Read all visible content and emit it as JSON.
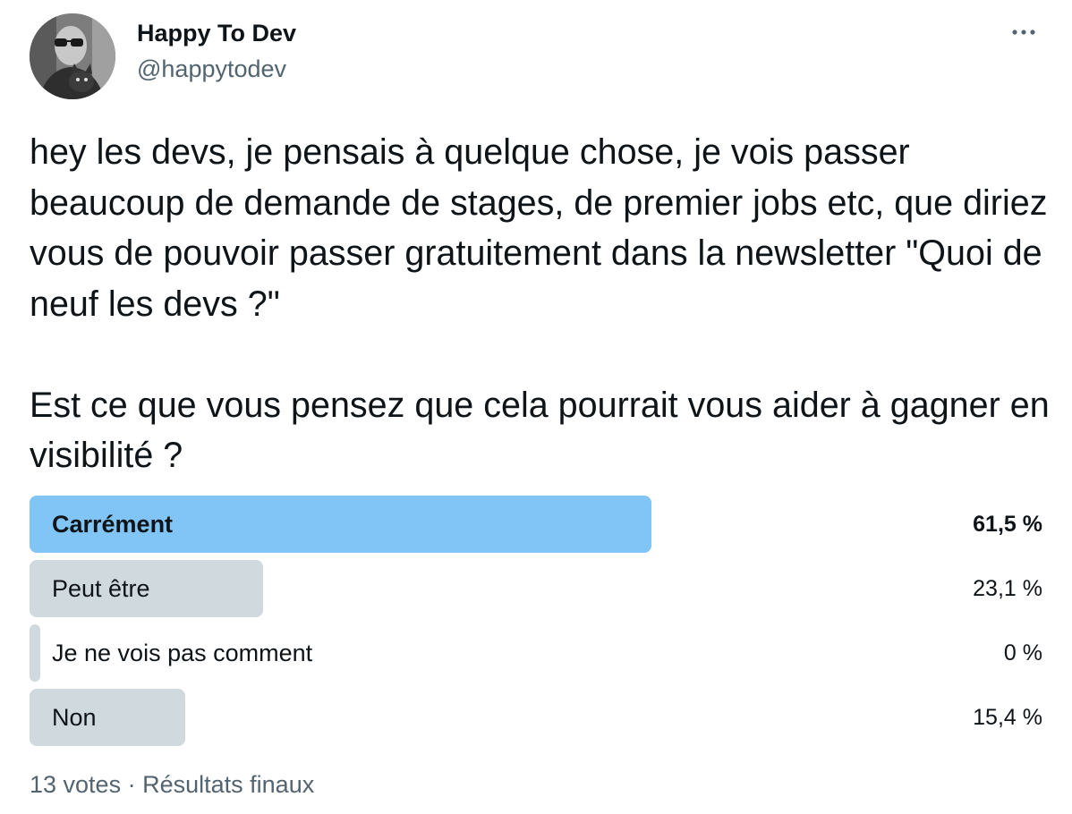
{
  "author": {
    "display_name": "Happy To Dev",
    "handle": "@happytodev",
    "avatar_icon": "profile-photo-avatar"
  },
  "more_icon": "more-horizontal-icon",
  "tweet": {
    "text": "hey les devs, je pensais à quelque chose, je vois passer beaucoup de demande de stages, de premier jobs etc, que diriez vous de pouvoir passer gratuitement dans la newsletter \"Quoi de neuf les devs ?\"\n\nEst ce que vous pensez que cela pourrait vous aider à gagner en visibilité ?"
  },
  "poll": {
    "options": [
      {
        "label": "Carrément",
        "percent_text": "61,5 %",
        "percent": 61.5,
        "winner": true
      },
      {
        "label": "Peut être",
        "percent_text": "23,1 %",
        "percent": 23.1,
        "winner": false
      },
      {
        "label": "Je ne vois pas comment",
        "percent_text": "0 %",
        "percent": 0,
        "winner": false
      },
      {
        "label": "Non",
        "percent_text": "15,4 %",
        "percent": 15.4,
        "winner": false
      }
    ],
    "votes": "13 votes",
    "separator": "·",
    "status": "Résultats finaux"
  },
  "colors": {
    "winner_bar": "#80c5f5",
    "other_bar": "#cfd9de",
    "secondary_text": "#536471",
    "primary_text": "#0f1419"
  }
}
